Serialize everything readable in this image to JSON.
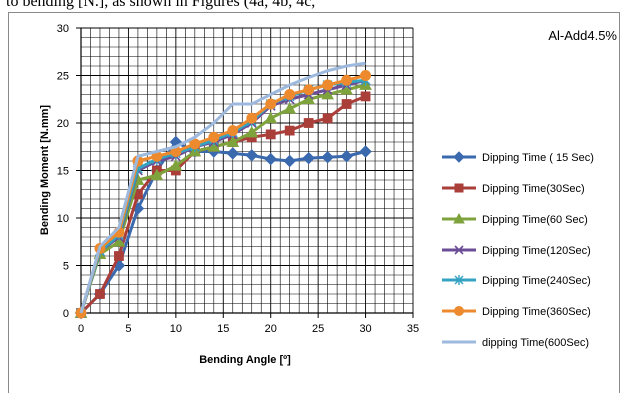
{
  "top_fragment": "to bending [N.], as shown in Figures (4a, 4b, 4c,",
  "colors": {
    "15": "#3A69AE",
    "30": "#AA3E39",
    "60": "#7FA33C",
    "120": "#6B4C96",
    "240": "#33A3C1",
    "360": "#EE8A2E",
    "600": "#9DB9DE"
  },
  "chart_data": {
    "type": "line",
    "title": "Al-Add4.5%",
    "xlabel": "Bending Angle [º]",
    "ylabel": "Bending Moment [N.mm]",
    "xlim": [
      0,
      35
    ],
    "ylim": [
      0,
      30
    ],
    "x_ticks": [
      "0",
      "5",
      "10",
      "15",
      "20",
      "25",
      "30",
      "35"
    ],
    "y_ticks": [
      "0",
      "5",
      "10",
      "15",
      "20",
      "25",
      "30"
    ],
    "grid": true,
    "legend_position": "right",
    "series": [
      {
        "name": "Dipping Time ( 15 Sec)",
        "color": "#3A69AE",
        "marker": "diamond",
        "x": [
          0,
          2,
          4,
          6,
          8,
          10,
          12,
          14,
          16,
          18,
          20,
          22,
          24,
          26,
          28,
          30
        ],
        "y": [
          0,
          2,
          5,
          11,
          15,
          18,
          17,
          17,
          16.8,
          16.6,
          16.2,
          16,
          16.3,
          16.4,
          16.5,
          17
        ]
      },
      {
        "name": "Dipping Time(30Sec)",
        "color": "#AA3E39",
        "marker": "square",
        "x": [
          0,
          2,
          4,
          6,
          8,
          10,
          12,
          14,
          16,
          18,
          20,
          22,
          24,
          26,
          28,
          30
        ],
        "y": [
          0,
          2,
          6,
          12.5,
          15,
          15,
          17,
          17.5,
          18,
          18.5,
          18.8,
          19.2,
          20,
          20.5,
          22,
          22.8
        ]
      },
      {
        "name": "Dipping Time(60 Sec)",
        "color": "#7FA33C",
        "marker": "triangle",
        "x": [
          0,
          2,
          4,
          6,
          8,
          10,
          12,
          14,
          16,
          18,
          20,
          22,
          24,
          26,
          28,
          30
        ],
        "y": [
          0,
          6.2,
          7.5,
          14,
          14.5,
          15.5,
          17,
          17.5,
          18,
          19,
          20.5,
          21.5,
          22.5,
          23,
          23.5,
          24
        ]
      },
      {
        "name": "Dipping Time(120Sec)",
        "color": "#6B4C96",
        "marker": "x",
        "x": [
          0,
          2,
          4,
          6,
          8,
          10,
          12,
          14,
          16,
          18,
          20,
          22,
          24,
          26,
          28,
          30
        ],
        "y": [
          0,
          6.5,
          8,
          15,
          16,
          16.5,
          17.5,
          18,
          18.8,
          20,
          21.8,
          22.5,
          23,
          23.5,
          24,
          24.5
        ]
      },
      {
        "name": "Dipping Time(240Sec)",
        "color": "#33A3C1",
        "marker": "star",
        "x": [
          0,
          2,
          4,
          6,
          8,
          10,
          12,
          14,
          16,
          18,
          20,
          22,
          24,
          26,
          28,
          30
        ],
        "y": [
          0,
          6.5,
          8.2,
          15.2,
          16.2,
          16.8,
          17.5,
          18.2,
          19,
          20.2,
          22,
          22.8,
          23.5,
          24,
          24.3,
          24.5
        ]
      },
      {
        "name": "Dipping Time(360Sec)",
        "color": "#EE8A2E",
        "marker": "circle",
        "x": [
          0,
          2,
          4,
          6,
          8,
          10,
          12,
          14,
          16,
          18,
          20,
          22,
          24,
          26,
          28,
          30
        ],
        "y": [
          0,
          6.8,
          8.5,
          16,
          16.5,
          17,
          17.8,
          18.5,
          19.2,
          20.5,
          22,
          23,
          23.5,
          24,
          24.5,
          25
        ]
      },
      {
        "name": "dipping Time(600Sec)",
        "color": "#9DB9DE",
        "marker": "none",
        "x": [
          0,
          2,
          4,
          6,
          8,
          10,
          12,
          14,
          16,
          18,
          20,
          22,
          24,
          26,
          28,
          30
        ],
        "y": [
          0,
          7,
          9,
          16.5,
          17,
          17.5,
          18.5,
          20,
          22,
          22,
          23,
          24,
          24.8,
          25.5,
          26,
          26.3
        ]
      }
    ]
  }
}
